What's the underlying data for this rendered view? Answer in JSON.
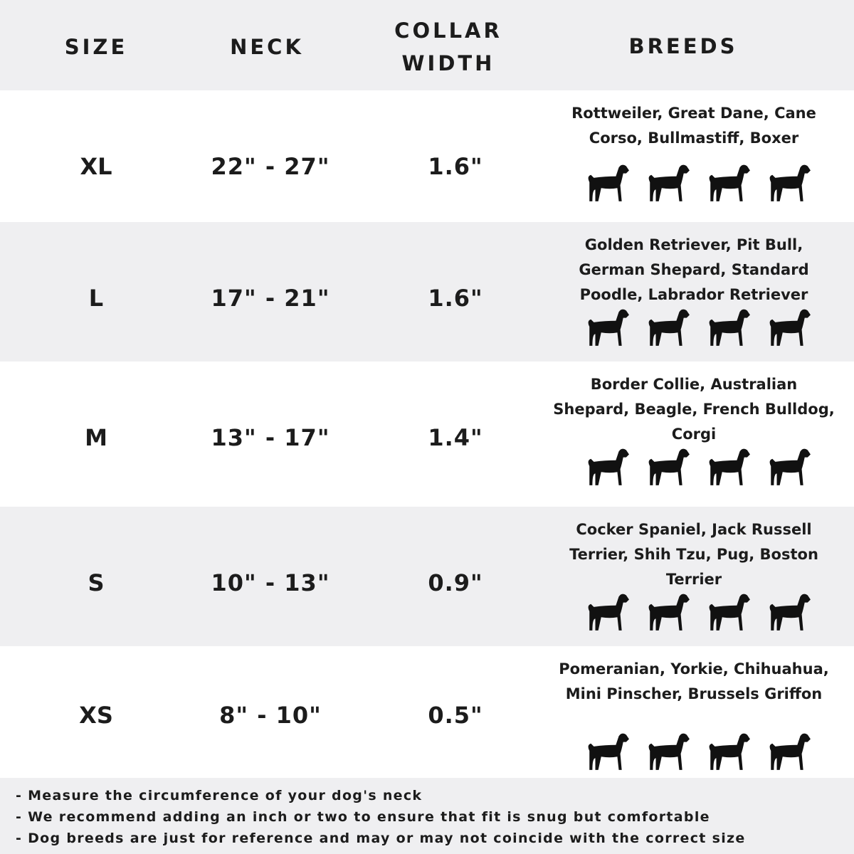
{
  "header": {
    "size": "SIZE",
    "neck": "NECK",
    "collar_width": "COLLAR WIDTH",
    "breeds": "BREEDS"
  },
  "rows": [
    {
      "size": "XL",
      "neck": "22\" - 27\"",
      "width": "1.6\"",
      "breeds": "Rottweiler, Great Dane, Cane Corso, Bullmastiff, Boxer",
      "icons": [
        "rottweiler-icon",
        "great-dane-icon",
        "cane-corso-icon",
        "bullmastiff-icon"
      ]
    },
    {
      "size": "L",
      "neck": "17\" - 21\"",
      "width": "1.6\"",
      "breeds": "Golden Retriever, Pit Bull, German Shepard, Standard Poodle, Labrador Retriever",
      "icons": [
        "golden-retriever-icon",
        "pit-bull-icon",
        "poodle-icon",
        "german-shepherd-icon"
      ]
    },
    {
      "size": "M",
      "neck": "13\" - 17\"",
      "width": "1.4\"",
      "breeds": "Border Collie, Australian Shepard, Beagle, French Bulldog, Corgi",
      "icons": [
        "border-collie-icon",
        "beagle-icon",
        "french-bulldog-icon",
        "corgi-icon"
      ]
    },
    {
      "size": "S",
      "neck": "10\" - 13\"",
      "width": "0.9\"",
      "breeds": "Cocker Spaniel, Jack Russell Terrier, Shih Tzu, Pug, Boston Terrier",
      "icons": [
        "cocker-spaniel-icon",
        "jack-russell-icon",
        "shih-tzu-icon",
        "pug-icon"
      ]
    },
    {
      "size": "XS",
      "neck": "8\" - 10\"",
      "width": "0.5\"",
      "breeds": "Pomeranian, Yorkie, Chihuahua, Mini Pinscher, Brussels Griffon",
      "icons": [
        "pomeranian-icon",
        "yorkie-icon",
        "chihuahua-icon",
        "mini-pinscher-icon"
      ]
    }
  ],
  "notes": [
    "- Measure the circumference of your dog's neck",
    "- We recommend adding an inch or two to ensure that fit is snug but comfortable",
    "- Dog breeds are just for reference and may or may not coincide with the correct size"
  ],
  "colors": {
    "band": "#efeff1",
    "text": "#1c1c1c"
  }
}
